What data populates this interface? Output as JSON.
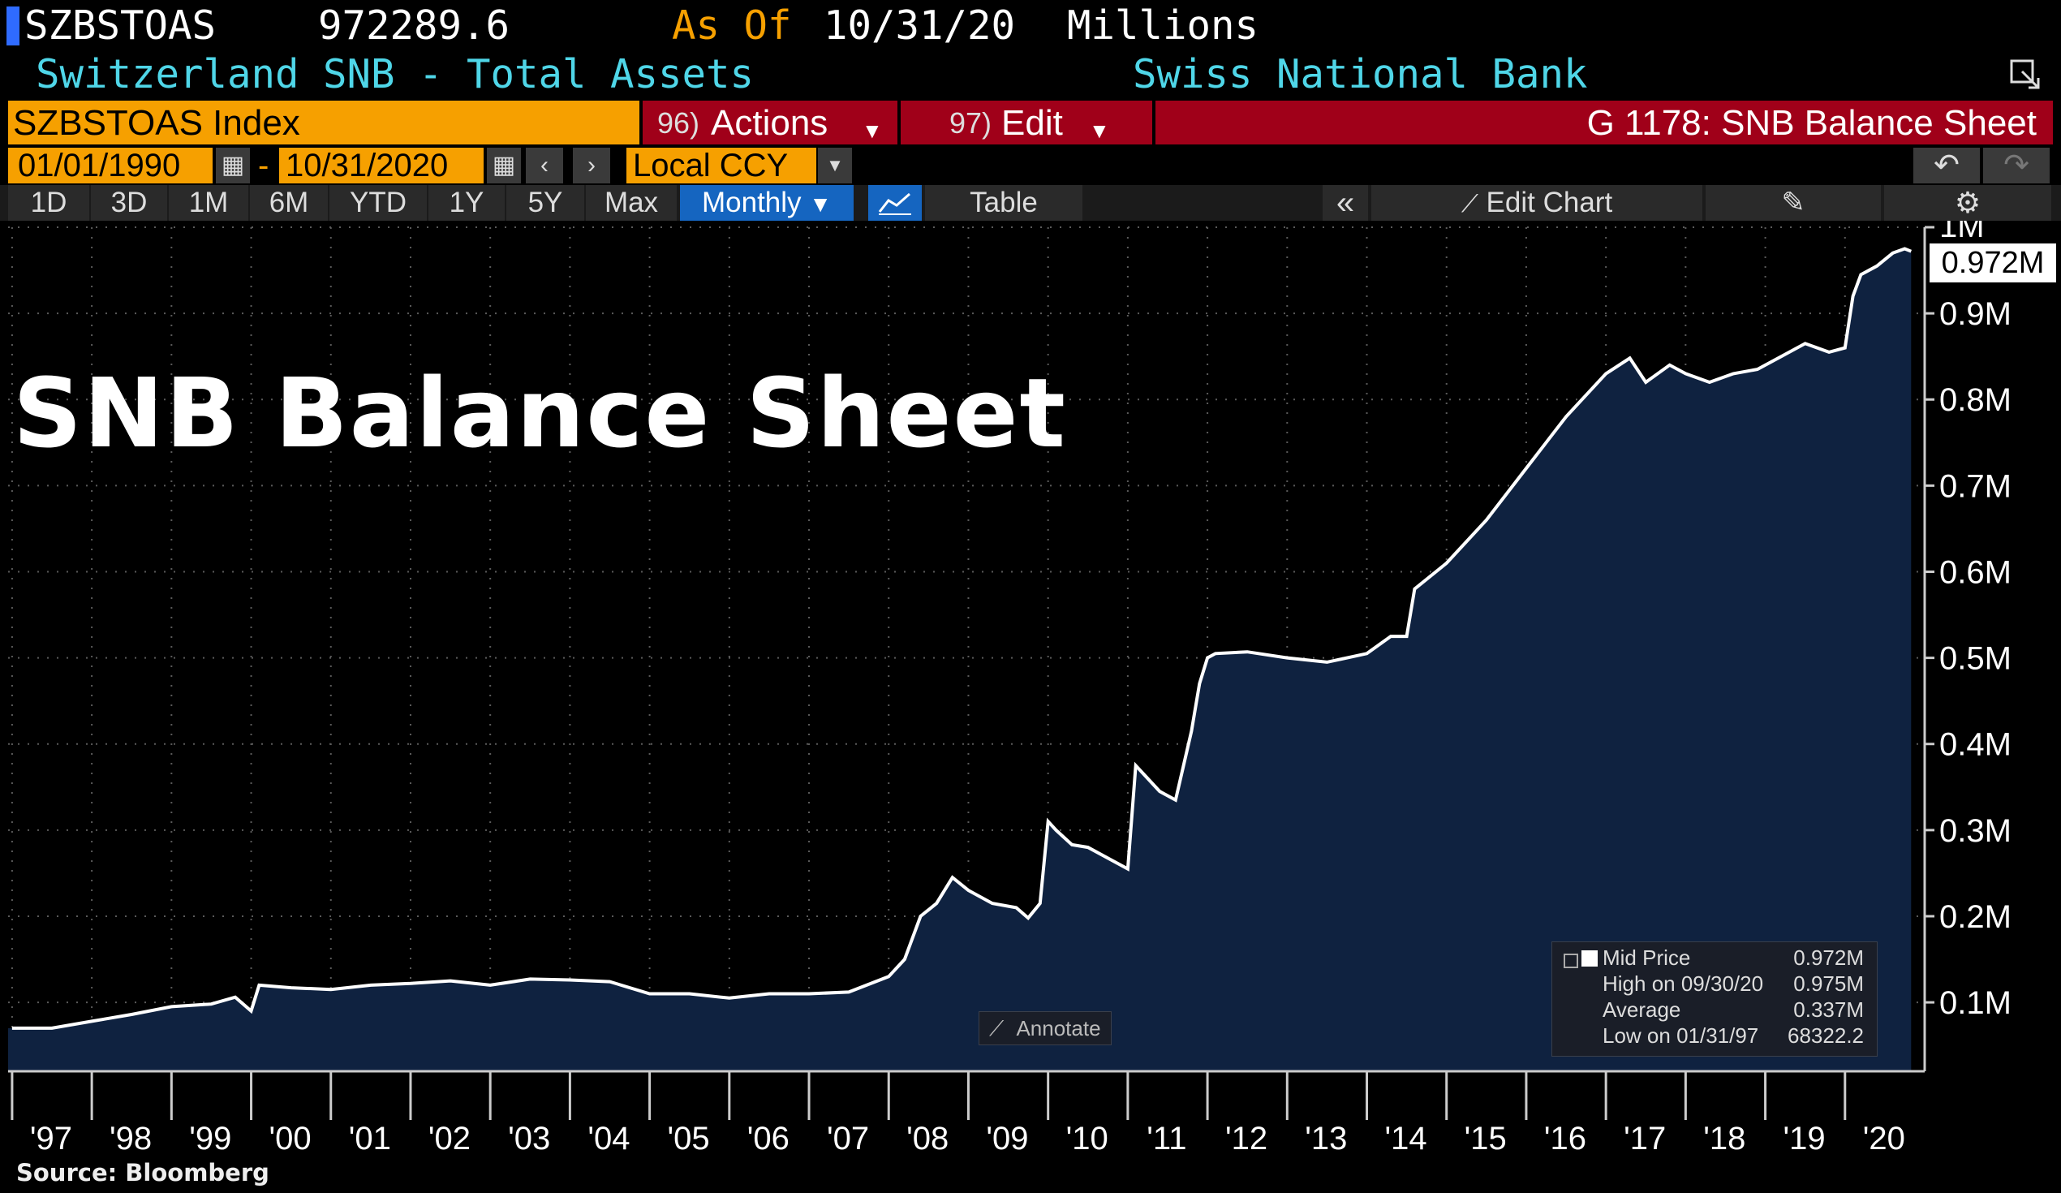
{
  "header": {
    "ticker": "SZBSTOAS",
    "last_value": "972289.6",
    "as_of_label": "As Of",
    "as_of_date": "10/31/20",
    "units": "Millions",
    "description": "Switzerland SNB - Total Assets",
    "source_name": "Swiss National Bank"
  },
  "toolbar": {
    "security": "SZBSTOAS Index",
    "actions_num": "96)",
    "actions_label": "Actions",
    "edit_num": "97)",
    "edit_label": "Edit",
    "page_title": "G 1178: SNB Balance Sheet",
    "start_date": "01/01/1990",
    "end_date": "10/31/2020",
    "date_sep": "-",
    "currency": "Local CCY",
    "ranges": [
      "1D",
      "3D",
      "1M",
      "6M",
      "YTD",
      "1Y",
      "5Y",
      "Max"
    ],
    "frequency": "Monthly",
    "table_label": "Table",
    "edit_chart_label": "Edit Chart"
  },
  "colors": {
    "header_bar": "#f6a000",
    "red_bar": "#a00019",
    "cyan_text": "#4fd6e8",
    "area_fill": "#0f2240",
    "line": "#ffffff",
    "selected": "#1565c0"
  },
  "legend": {
    "mid_label": "Mid Price",
    "mid_value": "0.972M",
    "high_label": "High on 09/30/20",
    "high_value": "0.975M",
    "avg_label": "Average",
    "avg_value": "0.337M",
    "low_label": "Low on 01/31/97",
    "low_value": "68322.2"
  },
  "annotate_label": "Annotate",
  "big_title": "SNB Balance Sheet",
  "source": "Source: Bloomberg",
  "chart_data": {
    "type": "area",
    "x_unit": "year",
    "y_unit": "CHF millions",
    "xlim": [
      1996.95,
      2021.0
    ],
    "ylim": [
      20000,
      1000000
    ],
    "grid": true,
    "xticks": [
      "'97",
      "'98",
      "'99",
      "'00",
      "'01",
      "'02",
      "'03",
      "'04",
      "'05",
      "'06",
      "'07",
      "'08",
      "'09",
      "'10",
      "'11",
      "'12",
      "'13",
      "'14",
      "'15",
      "'16",
      "'17",
      "'18",
      "'19",
      "'20"
    ],
    "yticks": [
      {
        "value": 100000,
        "label": "0.1M"
      },
      {
        "value": 200000,
        "label": "0.2M"
      },
      {
        "value": 300000,
        "label": "0.3M"
      },
      {
        "value": 400000,
        "label": "0.4M"
      },
      {
        "value": 500000,
        "label": "0.5M"
      },
      {
        "value": 600000,
        "label": "0.6M"
      },
      {
        "value": 700000,
        "label": "0.7M"
      },
      {
        "value": 800000,
        "label": "0.8M"
      },
      {
        "value": 900000,
        "label": "0.9M"
      },
      {
        "value": 1000000,
        "label": "1M"
      }
    ],
    "last_label": "0.972M",
    "x": [
      1997.0,
      1997.5,
      1998.0,
      1998.5,
      1999.0,
      1999.5,
      1999.8,
      2000.0,
      2000.1,
      2000.5,
      2001.0,
      2001.5,
      2002.0,
      2002.5,
      2003.0,
      2003.5,
      2004.0,
      2004.5,
      2005.0,
      2005.5,
      2006.0,
      2006.5,
      2007.0,
      2007.5,
      2008.0,
      2008.2,
      2008.4,
      2008.6,
      2008.8,
      2009.0,
      2009.3,
      2009.6,
      2009.75,
      2009.9,
      2010.0,
      2010.1,
      2010.3,
      2010.5,
      2010.8,
      2011.0,
      2011.1,
      2011.2,
      2011.4,
      2011.6,
      2011.8,
      2011.9,
      2012.0,
      2012.1,
      2012.5,
      2013.0,
      2013.5,
      2014.0,
      2014.3,
      2014.5,
      2014.6,
      2015.0,
      2015.5,
      2016.0,
      2016.5,
      2017.0,
      2017.3,
      2017.5,
      2017.8,
      2018.0,
      2018.3,
      2018.6,
      2018.9,
      2019.2,
      2019.5,
      2019.8,
      2020.0,
      2020.1,
      2020.2,
      2020.4,
      2020.6,
      2020.75,
      2020.83
    ],
    "y": [
      70000,
      70000,
      78000,
      86000,
      95000,
      98000,
      106000,
      90000,
      120000,
      117000,
      115000,
      120000,
      122000,
      125000,
      120000,
      127000,
      126000,
      124000,
      110000,
      110000,
      105000,
      110000,
      110000,
      112000,
      130000,
      150000,
      200000,
      215000,
      245000,
      230000,
      215000,
      210000,
      198000,
      215000,
      310000,
      300000,
      283000,
      280000,
      265000,
      255000,
      375000,
      365000,
      345000,
      335000,
      415000,
      470000,
      500000,
      505000,
      507000,
      500000,
      495000,
      505000,
      525000,
      525000,
      580000,
      610000,
      660000,
      720000,
      780000,
      830000,
      848000,
      820000,
      840000,
      830000,
      820000,
      830000,
      835000,
      850000,
      865000,
      855000,
      860000,
      920000,
      945000,
      955000,
      970000,
      975000,
      972000
    ]
  }
}
